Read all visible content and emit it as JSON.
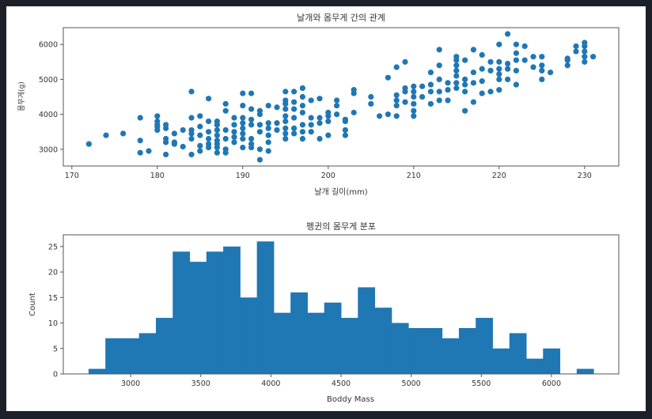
{
  "chart_data": [
    {
      "type": "scatter",
      "title": "날개와 몸무게 간의 관계",
      "xlabel": "날개 길이(mm)",
      "ylabel": "몸무게(g)",
      "xlim": [
        169,
        234
      ],
      "ylim": [
        2520,
        6480
      ],
      "xticks": [
        170,
        180,
        190,
        200,
        210,
        220,
        230
      ],
      "yticks": [
        3000,
        4000,
        5000,
        6000
      ],
      "xtick_labels": [
        "170",
        "180",
        "190",
        "200",
        "210",
        "220",
        "230"
      ],
      "ytick_labels": [
        "3000",
        "4000",
        "5000",
        "6000"
      ],
      "color": "#1f77b4",
      "grid": false,
      "groups": [
        {
          "x": 172,
          "y": [
            3150
          ]
        },
        {
          "x": 174,
          "y": [
            3400
          ]
        },
        {
          "x": 176,
          "y": [
            3450
          ]
        },
        {
          "x": 178,
          "y": [
            2900,
            3250,
            3900
          ]
        },
        {
          "x": 179,
          "y": [
            2950
          ]
        },
        {
          "x": 180,
          "y": [
            3550,
            3650,
            3700,
            3800,
            3950
          ]
        },
        {
          "x": 181,
          "y": [
            2850,
            3200,
            3300,
            3600,
            3700
          ]
        },
        {
          "x": 182,
          "y": [
            3150,
            3200,
            3450
          ]
        },
        {
          "x": 183,
          "y": [
            3075,
            3550
          ]
        },
        {
          "x": 184,
          "y": [
            2850,
            3300,
            3450,
            3550,
            3900,
            4650
          ]
        },
        {
          "x": 185,
          "y": [
            2950,
            3100,
            3400,
            3650,
            3950
          ]
        },
        {
          "x": 186,
          "y": [
            3050,
            3150,
            3300,
            3500,
            3800,
            4450
          ]
        },
        {
          "x": 187,
          "y": [
            2900,
            3050,
            3150,
            3250,
            3400,
            3550,
            3700,
            3800
          ]
        },
        {
          "x": 188,
          "y": [
            2900,
            3000,
            3300,
            3550,
            4100,
            4300
          ]
        },
        {
          "x": 189,
          "y": [
            3200,
            3350,
            3500,
            3700,
            3900
          ]
        },
        {
          "x": 190,
          "y": [
            3050,
            3300,
            3450,
            3600,
            3750,
            3900,
            4250,
            4600
          ]
        },
        {
          "x": 191,
          "y": [
            3050,
            3150,
            3300,
            3700,
            3850,
            4150,
            4600
          ]
        },
        {
          "x": 192,
          "y": [
            2700,
            3000,
            3500,
            3700,
            4000,
            4100
          ]
        },
        {
          "x": 193,
          "y": [
            2950,
            3200,
            3400,
            3600,
            3750,
            4250
          ]
        },
        {
          "x": 194,
          "y": [
            3550,
            3750,
            4200
          ]
        },
        {
          "x": 195,
          "y": [
            3300,
            3450,
            3600,
            3800,
            3950,
            4150,
            4300,
            4400,
            4650
          ]
        },
        {
          "x": 196,
          "y": [
            3450,
            3600,
            3900,
            4150,
            4350,
            4650
          ]
        },
        {
          "x": 197,
          "y": [
            3300,
            3500,
            3700,
            4050,
            4250,
            4500,
            4750
          ]
        },
        {
          "x": 198,
          "y": [
            3500,
            3700,
            3900,
            4400
          ]
        },
        {
          "x": 199,
          "y": [
            3300,
            3750,
            3900,
            4450
          ]
        },
        {
          "x": 200,
          "y": [
            3400,
            3800,
            3950,
            4050
          ]
        },
        {
          "x": 201,
          "y": [
            4000,
            4250,
            4400
          ]
        },
        {
          "x": 202,
          "y": [
            3400,
            3550,
            3800,
            3850
          ]
        },
        {
          "x": 203,
          "y": [
            4050,
            4600,
            4700
          ]
        },
        {
          "x": 205,
          "y": [
            4300,
            4500
          ]
        },
        {
          "x": 206,
          "y": [
            3950
          ]
        },
        {
          "x": 207,
          "y": [
            4000,
            5050
          ]
        },
        {
          "x": 208,
          "y": [
            3950,
            4250,
            4400,
            4550,
            5350
          ]
        },
        {
          "x": 209,
          "y": [
            4350,
            4650,
            4750,
            5500
          ]
        },
        {
          "x": 210,
          "y": [
            3950,
            4100,
            4300,
            4500,
            4650,
            4800
          ]
        },
        {
          "x": 211,
          "y": [
            4500,
            4800
          ]
        },
        {
          "x": 212,
          "y": [
            4300,
            4650,
            4850,
            5200
          ]
        },
        {
          "x": 213,
          "y": [
            4400,
            4650,
            5000,
            5400,
            5850
          ]
        },
        {
          "x": 214,
          "y": [
            4400,
            4700,
            4900
          ]
        },
        {
          "x": 215,
          "y": [
            4750,
            4900,
            5100,
            5250,
            5400,
            5550,
            5650
          ]
        },
        {
          "x": 216,
          "y": [
            4100,
            4650,
            4850,
            5000,
            5550
          ]
        },
        {
          "x": 217,
          "y": [
            4350,
            4900,
            5200,
            5850
          ]
        },
        {
          "x": 218,
          "y": [
            4600,
            4950,
            5300,
            5700
          ]
        },
        {
          "x": 219,
          "y": [
            4650,
            5250,
            5500
          ]
        },
        {
          "x": 220,
          "y": [
            4700,
            5000,
            5150,
            5300,
            5500,
            6000
          ]
        },
        {
          "x": 221,
          "y": [
            5000,
            5300,
            5450,
            6300
          ]
        },
        {
          "x": 222,
          "y": [
            4850,
            5250,
            5550,
            5750,
            6000
          ]
        },
        {
          "x": 223,
          "y": [
            5550,
            5950
          ]
        },
        {
          "x": 224,
          "y": [
            5350,
            5650
          ]
        },
        {
          "x": 225,
          "y": [
            5000,
            5250,
            5400,
            5650
          ]
        },
        {
          "x": 226,
          "y": [
            5200
          ]
        },
        {
          "x": 228,
          "y": [
            5400,
            5550,
            5600
          ]
        },
        {
          "x": 229,
          "y": [
            5800,
            5950
          ]
        },
        {
          "x": 230,
          "y": [
            5500,
            5650,
            5800,
            5950,
            6050
          ]
        },
        {
          "x": 231,
          "y": [
            5650
          ]
        }
      ]
    },
    {
      "type": "bar",
      "subtype": "histogram",
      "title": "펭귄의 몸무게 분포",
      "xlabel": "Boddy Mass",
      "ylabel": "Count",
      "bin_start": 2700,
      "bin_width": 120,
      "values": [
        1,
        7,
        7,
        8,
        11,
        24,
        22,
        24,
        25,
        15,
        26,
        12,
        16,
        12,
        14,
        11,
        17,
        13,
        10,
        9,
        9,
        7,
        9,
        11,
        5,
        8,
        3,
        5,
        0,
        1
      ],
      "xlim": [
        2520,
        6480
      ],
      "ylim": [
        0,
        27.3
      ],
      "xticks": [
        3000,
        3500,
        4000,
        4500,
        5000,
        5500,
        6000
      ],
      "yticks": [
        0,
        5,
        10,
        15,
        20,
        25
      ],
      "xtick_labels": [
        "3000",
        "3500",
        "4000",
        "4500",
        "5000",
        "5500",
        "6000"
      ],
      "ytick_labels": [
        "0",
        "5",
        "10",
        "15",
        "20",
        "25"
      ],
      "color": "#1f77b4",
      "grid": false
    }
  ]
}
